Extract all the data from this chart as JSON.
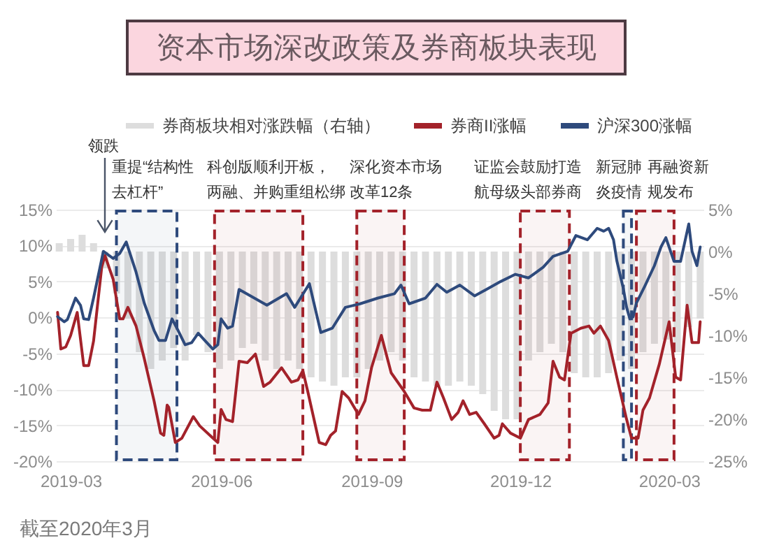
{
  "chart_data": {
    "type": "line",
    "title": "资本市场深改政策及券商板块表现",
    "annotations": [
      "领跌",
      "重提“结构性去杠杆”",
      "科创版顺利开板，两融、并购重组松绑",
      "深化资本市场改革12条",
      "证监会鼓励打造航母级头部券商",
      "新冠肺炎疫情",
      "再融资新规发布",
      "截至2020年3月"
    ],
    "xlim": [
      "2019-02-20",
      "2020-03-22"
    ],
    "xticks": [
      "2019-03",
      "2019-06",
      "2019-09",
      "2019-12",
      "2020-03"
    ],
    "ylim": [
      -20,
      15
    ],
    "yticks": [
      {
        "value": 15,
        "label": "15%"
      },
      {
        "value": 10,
        "label": "10%"
      },
      {
        "value": 5,
        "label": "5%"
      },
      {
        "value": 0,
        "label": "0%"
      },
      {
        "value": -5,
        "label": "-5%"
      },
      {
        "value": -10,
        "label": "-10%"
      },
      {
        "value": -15,
        "label": "-15%"
      },
      {
        "value": -20,
        "label": "-20%"
      }
    ],
    "y2lim": [
      -25,
      5
    ],
    "y2ticks": [
      {
        "value": 5,
        "label": "5%"
      },
      {
        "value": 0,
        "label": "0%"
      },
      {
        "value": -5,
        "label": "-5%"
      },
      {
        "value": -10,
        "label": "-10%"
      },
      {
        "value": -15,
        "label": "-15%"
      },
      {
        "value": -20,
        "label": "-20%"
      },
      {
        "value": -25,
        "label": "-25%"
      }
    ],
    "series": [
      {
        "name": "券商板块相对涨跌幅（右轴）",
        "type": "bar",
        "axis": "y2",
        "color": "#dddddd",
        "x": [
          "2019-02-22",
          "2019-03-01",
          "2019-03-08",
          "2019-03-15",
          "2019-03-22",
          "2019-03-29",
          "2019-04-05",
          "2019-04-12",
          "2019-04-19",
          "2019-04-26",
          "2019-05-03",
          "2019-05-10",
          "2019-05-17",
          "2019-05-24",
          "2019-05-31",
          "2019-06-07",
          "2019-06-14",
          "2019-06-21",
          "2019-06-28",
          "2019-07-05",
          "2019-07-12",
          "2019-07-19",
          "2019-07-26",
          "2019-08-02",
          "2019-08-09",
          "2019-08-16",
          "2019-08-23",
          "2019-08-30",
          "2019-09-06",
          "2019-09-13",
          "2019-09-20",
          "2019-09-27",
          "2019-10-04",
          "2019-10-11",
          "2019-10-18",
          "2019-10-25",
          "2019-11-01",
          "2019-11-08",
          "2019-11-15",
          "2019-11-22",
          "2019-11-29",
          "2019-12-06",
          "2019-12-13",
          "2019-12-20",
          "2019-12-27",
          "2020-01-03",
          "2020-01-10",
          "2020-01-17",
          "2020-01-24",
          "2020-01-31",
          "2020-02-07",
          "2020-02-14",
          "2020-02-21",
          "2020-02-28",
          "2020-03-06",
          "2020-03-13",
          "2020-03-20"
        ],
        "values": [
          1,
          1.5,
          2,
          1,
          -2,
          -5,
          -8,
          -12,
          -14,
          -13,
          -11.5,
          -13,
          -10,
          -12,
          -14,
          -13,
          -11.5,
          -11,
          -13,
          -14,
          -13,
          -14,
          -15,
          -15.5,
          -16,
          -15,
          -15,
          -14,
          -13,
          -12,
          -13,
          -15,
          -15.5,
          -16,
          -16,
          -15.5,
          -16,
          -17,
          -19,
          -20,
          -20,
          -13,
          -12,
          -11,
          -12,
          -14.5,
          -15,
          -15,
          -14.5,
          -13,
          -14,
          -12,
          -11,
          -10.5,
          -12,
          -9,
          -8
        ]
      },
      {
        "name": "券商II涨幅",
        "color": "#a3222a",
        "x": [
          "2019-02-21",
          "2019-02-23",
          "2019-02-26",
          "2019-03-01",
          "2019-03-05",
          "2019-03-09",
          "2019-03-12",
          "2019-03-15",
          "2019-03-20",
          "2019-03-22",
          "2019-03-27",
          "2019-03-31",
          "2019-04-02",
          "2019-04-05",
          "2019-04-10",
          "2019-04-15",
          "2019-04-21",
          "2019-04-25",
          "2019-04-27",
          "2019-04-29",
          "2019-04-30",
          "2019-05-04",
          "2019-05-08",
          "2019-05-15",
          "2019-05-19",
          "2019-05-27",
          "2019-05-30",
          "2019-06-01",
          "2019-06-04",
          "2019-06-08",
          "2019-06-12",
          "2019-06-17",
          "2019-06-22",
          "2019-06-27",
          "2019-07-01",
          "2019-07-08",
          "2019-07-14",
          "2019-07-18",
          "2019-07-21",
          "2019-07-24",
          "2019-07-31",
          "2019-08-04",
          "2019-08-07",
          "2019-08-10",
          "2019-08-14",
          "2019-08-18",
          "2019-08-24",
          "2019-08-28",
          "2019-09-01",
          "2019-09-07",
          "2019-09-13",
          "2019-09-21",
          "2019-09-27",
          "2019-10-02",
          "2019-10-07",
          "2019-10-11",
          "2019-10-15",
          "2019-10-20",
          "2019-10-24",
          "2019-10-27",
          "2019-10-31",
          "2019-11-04",
          "2019-11-09",
          "2019-11-15",
          "2019-11-18",
          "2019-11-20",
          "2019-11-25",
          "2019-12-01",
          "2019-12-06",
          "2019-12-13",
          "2019-12-18",
          "2019-12-21",
          "2019-12-25",
          "2019-12-28",
          "2020-01-01",
          "2020-01-07",
          "2020-01-12",
          "2020-01-15",
          "2020-01-19",
          "2020-01-24",
          "2020-01-29",
          "2020-02-04",
          "2020-02-07",
          "2020-02-11",
          "2020-02-14",
          "2020-02-18",
          "2020-02-24",
          "2020-03-01",
          "2020-03-05",
          "2020-03-08",
          "2020-03-12",
          "2020-03-15",
          "2020-03-19",
          "2020-03-20"
        ],
        "values": [
          0.7,
          -4.4,
          -4.1,
          -2.5,
          0.7,
          -6.7,
          -6.7,
          -3.3,
          7.0,
          8.6,
          5.3,
          -0.2,
          -0.2,
          1.4,
          -1.2,
          -5.7,
          -11.6,
          -16.1,
          -16.4,
          -12.2,
          -12.5,
          -17.4,
          -16.8,
          -13.8,
          -15.1,
          -16.8,
          -17.4,
          -12.8,
          -14.2,
          -14.5,
          -6.1,
          -6.3,
          -5.1,
          -9.6,
          -9.0,
          -7.0,
          -9.0,
          -8.7,
          -7.4,
          -10.3,
          -17.4,
          -17.7,
          -16.4,
          -15.8,
          -10.3,
          -11.2,
          -13.5,
          -11.6,
          -7.0,
          -2.5,
          -7.7,
          -10.3,
          -12.6,
          -12.9,
          -12.9,
          -9.0,
          -11.2,
          -14.2,
          -13.2,
          -11.6,
          -13.5,
          -13.2,
          -14.8,
          -16.8,
          -16.4,
          -14.8,
          -16.1,
          -16.8,
          -14.2,
          -13.5,
          -11.9,
          -6.1,
          -8.3,
          -8.7,
          -2.2,
          -1.5,
          -1.2,
          -2.2,
          -1.2,
          -3.2,
          -8.3,
          -14.2,
          -16.8,
          -16.8,
          -12.9,
          -11.2,
          -6.5,
          -0.6,
          -8.3,
          -8.7,
          1.7,
          -3.5,
          -3.5,
          -0.6
        ]
      },
      {
        "name": "沪深300涨幅",
        "color": "#2e4a7c",
        "x": [
          "2019-02-21",
          "2019-02-25",
          "2019-02-27",
          "2019-03-04",
          "2019-03-07",
          "2019-03-09",
          "2019-03-12",
          "2019-03-15",
          "2019-03-21",
          "2019-03-27",
          "2019-03-31",
          "2019-04-04",
          "2019-04-10",
          "2019-04-15",
          "2019-04-21",
          "2019-04-24",
          "2019-04-28",
          "2019-05-02",
          "2019-05-05",
          "2019-05-10",
          "2019-05-14",
          "2019-05-18",
          "2019-05-22",
          "2019-05-27",
          "2019-05-30",
          "2019-06-01",
          "2019-06-05",
          "2019-06-08",
          "2019-06-12",
          "2019-06-19",
          "2019-06-29",
          "2019-07-11",
          "2019-07-16",
          "2019-07-25",
          "2019-08-01",
          "2019-08-08",
          "2019-08-16",
          "2019-08-25",
          "2019-09-05",
          "2019-09-15",
          "2019-09-19",
          "2019-09-24",
          "2019-10-04",
          "2019-10-11",
          "2019-10-17",
          "2019-10-25",
          "2019-11-03",
          "2019-11-11",
          "2019-11-19",
          "2019-11-28",
          "2019-12-06",
          "2019-12-15",
          "2019-12-21",
          "2019-12-30",
          "2020-01-04",
          "2020-01-11",
          "2020-01-17",
          "2020-01-21",
          "2020-01-24",
          "2020-01-27",
          "2020-01-29",
          "2020-02-02",
          "2020-02-04",
          "2020-02-06",
          "2020-02-08",
          "2020-02-10",
          "2020-02-15",
          "2020-02-21",
          "2020-02-25",
          "2020-02-28",
          "2020-03-04",
          "2020-03-08",
          "2020-03-13",
          "2020-03-15",
          "2020-03-18",
          "2020-03-20"
        ],
        "values": [
          0.1,
          -0.6,
          -0.3,
          2.7,
          1.7,
          -0.2,
          -0.3,
          2.7,
          9.2,
          8.2,
          8.9,
          10.5,
          6.3,
          2.0,
          -1.8,
          -3.2,
          -3.2,
          -0.2,
          -1.5,
          -3.8,
          -3.5,
          -2.2,
          -3.2,
          -4.4,
          -3.8,
          -0.2,
          -1.5,
          -1.2,
          3.9,
          3.0,
          1.7,
          3.3,
          1.4,
          4.7,
          -2.1,
          -1.5,
          1.4,
          1.9,
          2.7,
          3.3,
          4.5,
          1.9,
          2.7,
          4.6,
          3.5,
          4.5,
          3.0,
          4.0,
          5.0,
          6.0,
          5.5,
          7.0,
          8.5,
          9.2,
          11.4,
          10.8,
          12.4,
          12.0,
          12.4,
          10.8,
          7.9,
          4.0,
          1.4,
          -0.2,
          0.1,
          2.0,
          4.3,
          7.2,
          9.8,
          11.1,
          7.8,
          7.8,
          13.0,
          9.2,
          7.2,
          9.8
        ]
      }
    ],
    "bands": [
      {
        "axis": "x",
        "from": "2019-03-29",
        "to": "2019-05-05",
        "color": "#2e4a7c"
      },
      {
        "axis": "x",
        "from": "2019-05-28",
        "to": "2019-07-21",
        "color": "#a3222a"
      },
      {
        "axis": "x",
        "from": "2019-08-23",
        "to": "2019-09-21",
        "color": "#a3222a"
      },
      {
        "axis": "x",
        "from": "2019-12-01",
        "to": "2019-12-31",
        "color": "#a3222a"
      },
      {
        "axis": "x",
        "from": "2020-02-02",
        "to": "2020-02-07",
        "color": "#2e4a7c"
      },
      {
        "axis": "x",
        "from": "2020-02-10",
        "to": "2020-03-04",
        "color": "#a3222a"
      }
    ],
    "legend": "top",
    "grid": "y"
  }
}
